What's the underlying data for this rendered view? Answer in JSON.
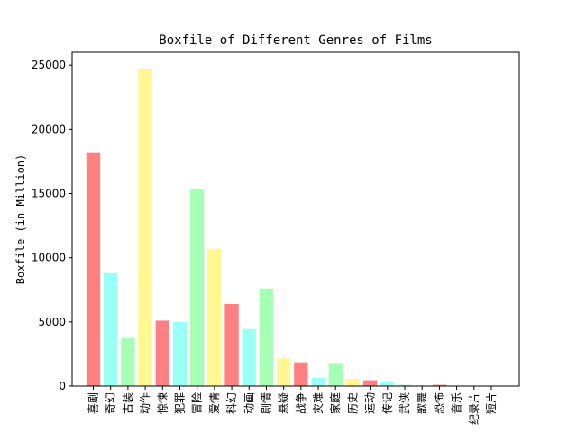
{
  "chart_data": {
    "type": "bar",
    "title": "Boxfile of Different Genres of Films",
    "xlabel": "",
    "ylabel": "Boxfile (in Million)",
    "ylim": [
      0,
      26000
    ],
    "yticks": [
      0,
      5000,
      10000,
      15000,
      20000,
      25000
    ],
    "grid": false,
    "legend": "none",
    "categories": [
      "喜剧",
      "奇幻",
      "古装",
      "动作",
      "惊悚",
      "犯罪",
      "冒险",
      "爱情",
      "科幻",
      "动画",
      "剧情",
      "悬疑",
      "战争",
      "灾难",
      "家庭",
      "历史",
      "运动",
      "传记",
      "武侠",
      "歌舞",
      "恐怖",
      "音乐",
      "纪录片",
      "短片"
    ],
    "values": [
      18150,
      8800,
      3750,
      24700,
      5100,
      5000,
      15350,
      10700,
      6400,
      4450,
      7600,
      2150,
      1850,
      650,
      1800,
      550,
      450,
      300,
      100,
      50,
      100,
      30,
      20,
      10
    ],
    "bar_colors": [
      "#ff8080",
      "#9afff5",
      "#a6ffb4",
      "#fff78f",
      "#ff8080",
      "#9afff5",
      "#a6ffb4",
      "#fff78f",
      "#ff8080",
      "#9afff5",
      "#a6ffb4",
      "#fff78f",
      "#ff8080",
      "#9afff5",
      "#a6ffb4",
      "#fff78f",
      "#ff8080",
      "#9afff5",
      "#a6ffb4",
      "#fff78f",
      "#ff8080",
      "#9afff5",
      "#a6ffb4",
      "#fff78f"
    ]
  }
}
